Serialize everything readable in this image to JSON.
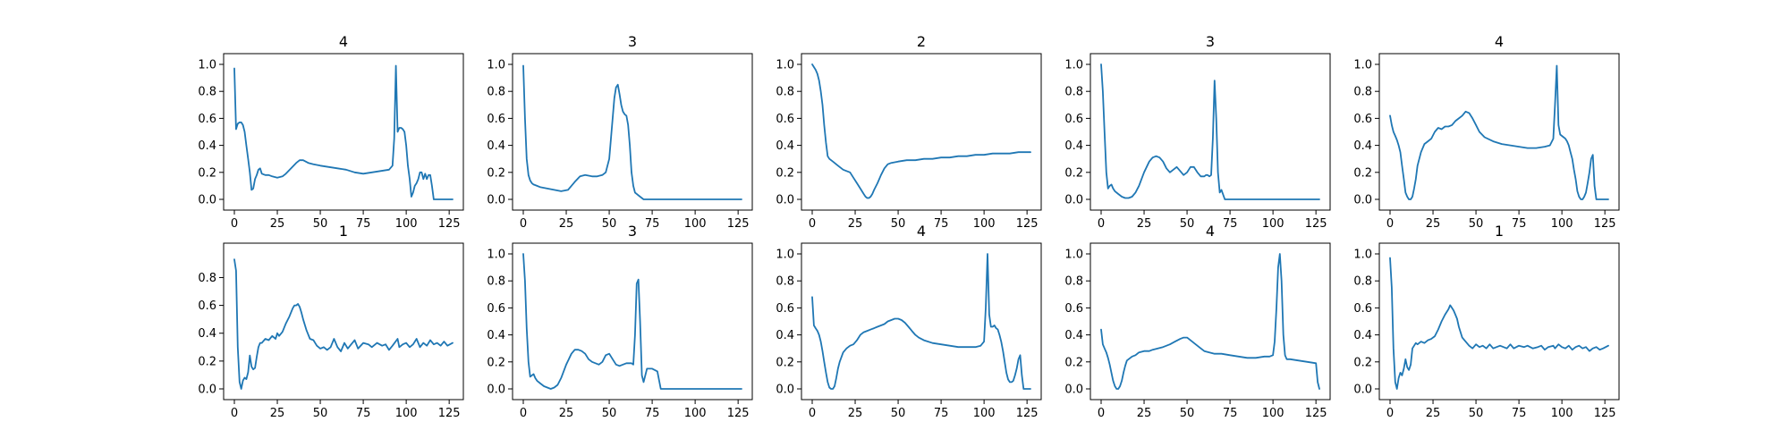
{
  "style": {
    "line_color": "#1f77b4"
  },
  "chart_data": [
    {
      "type": "line",
      "title": "4",
      "xlim": [
        0,
        127
      ],
      "ylim": [
        0,
        1
      ],
      "xticks": [
        0,
        25,
        50,
        75,
        100,
        125
      ],
      "yticks": [
        0.0,
        0.2,
        0.4,
        0.6,
        0.8,
        1.0
      ],
      "x": [
        0,
        1,
        2,
        3,
        4,
        5,
        6,
        7,
        8,
        9,
        10,
        11,
        12,
        13,
        14,
        15,
        16,
        18,
        20,
        22,
        25,
        28,
        30,
        33,
        36,
        38,
        40,
        43,
        46,
        50,
        55,
        60,
        65,
        70,
        75,
        80,
        85,
        90,
        92,
        93,
        94,
        95,
        96,
        97,
        98,
        99,
        100,
        101,
        102,
        103,
        104,
        105,
        106,
        107,
        108,
        109,
        110,
        111,
        112,
        113,
        114,
        115,
        116,
        117,
        118,
        127
      ],
      "y": [
        0.97,
        0.52,
        0.56,
        0.57,
        0.57,
        0.55,
        0.5,
        0.4,
        0.3,
        0.2,
        0.07,
        0.08,
        0.15,
        0.18,
        0.22,
        0.23,
        0.19,
        0.18,
        0.18,
        0.17,
        0.16,
        0.17,
        0.19,
        0.23,
        0.27,
        0.29,
        0.29,
        0.27,
        0.26,
        0.25,
        0.24,
        0.23,
        0.22,
        0.2,
        0.19,
        0.2,
        0.21,
        0.22,
        0.25,
        0.45,
        0.99,
        0.5,
        0.53,
        0.53,
        0.52,
        0.5,
        0.4,
        0.25,
        0.15,
        0.02,
        0.05,
        0.1,
        0.12,
        0.15,
        0.2,
        0.2,
        0.15,
        0.19,
        0.15,
        0.18,
        0.18,
        0.1,
        0.0,
        0.0,
        0.0,
        0.0
      ]
    },
    {
      "type": "line",
      "title": "3",
      "xlim": [
        0,
        127
      ],
      "ylim": [
        0,
        1
      ],
      "xticks": [
        0,
        25,
        50,
        75,
        100,
        125
      ],
      "yticks": [
        0.0,
        0.2,
        0.4,
        0.6,
        0.8,
        1.0
      ],
      "x": [
        0,
        1,
        2,
        3,
        4,
        5,
        6,
        8,
        10,
        14,
        18,
        22,
        26,
        28,
        30,
        33,
        36,
        40,
        43,
        46,
        48,
        50,
        51,
        52,
        53,
        54,
        55,
        56,
        57,
        58,
        59,
        60,
        61,
        62,
        63,
        64,
        65,
        68,
        70,
        72,
        80,
        100,
        127
      ],
      "y": [
        0.99,
        0.6,
        0.3,
        0.18,
        0.14,
        0.12,
        0.11,
        0.1,
        0.09,
        0.08,
        0.07,
        0.06,
        0.07,
        0.1,
        0.13,
        0.17,
        0.18,
        0.17,
        0.17,
        0.18,
        0.2,
        0.3,
        0.45,
        0.6,
        0.75,
        0.83,
        0.85,
        0.78,
        0.7,
        0.65,
        0.63,
        0.62,
        0.55,
        0.4,
        0.2,
        0.1,
        0.05,
        0.02,
        0.0,
        0.0,
        0.0,
        0.0,
        0.0
      ]
    },
    {
      "type": "line",
      "title": "2",
      "xlim": [
        0,
        127
      ],
      "ylim": [
        0,
        1
      ],
      "xticks": [
        0,
        25,
        50,
        75,
        100,
        125
      ],
      "yticks": [
        0.0,
        0.2,
        0.4,
        0.6,
        0.8,
        1.0
      ],
      "x": [
        0,
        1,
        2,
        3,
        4,
        5,
        6,
        7,
        8,
        9,
        10,
        12,
        15,
        18,
        20,
        22,
        24,
        26,
        28,
        30,
        31,
        32,
        33,
        34,
        35,
        36,
        38,
        40,
        42,
        44,
        46,
        50,
        55,
        60,
        65,
        70,
        75,
        80,
        85,
        90,
        95,
        100,
        105,
        110,
        115,
        120,
        127
      ],
      "y": [
        1.0,
        0.98,
        0.96,
        0.93,
        0.88,
        0.8,
        0.7,
        0.55,
        0.42,
        0.32,
        0.3,
        0.28,
        0.25,
        0.22,
        0.21,
        0.2,
        0.16,
        0.12,
        0.08,
        0.04,
        0.02,
        0.01,
        0.01,
        0.02,
        0.04,
        0.07,
        0.12,
        0.18,
        0.23,
        0.26,
        0.27,
        0.28,
        0.29,
        0.29,
        0.3,
        0.3,
        0.31,
        0.31,
        0.32,
        0.32,
        0.33,
        0.33,
        0.34,
        0.34,
        0.34,
        0.35,
        0.35
      ]
    },
    {
      "type": "line",
      "title": "3",
      "xlim": [
        0,
        127
      ],
      "ylim": [
        0,
        1
      ],
      "xticks": [
        0,
        25,
        50,
        75,
        100,
        125
      ],
      "yticks": [
        0.0,
        0.2,
        0.4,
        0.6,
        0.8,
        1.0
      ],
      "x": [
        0,
        1,
        2,
        3,
        4,
        5,
        6,
        7,
        8,
        10,
        12,
        14,
        16,
        18,
        20,
        22,
        25,
        28,
        30,
        32,
        34,
        36,
        38,
        40,
        42,
        44,
        46,
        48,
        50,
        52,
        54,
        56,
        58,
        60,
        61,
        62,
        63,
        64,
        65,
        66,
        67,
        68,
        69,
        70,
        72,
        80,
        100,
        127
      ],
      "y": [
        1.0,
        0.8,
        0.5,
        0.2,
        0.08,
        0.1,
        0.11,
        0.08,
        0.06,
        0.04,
        0.02,
        0.01,
        0.01,
        0.02,
        0.05,
        0.1,
        0.2,
        0.28,
        0.31,
        0.32,
        0.31,
        0.28,
        0.23,
        0.2,
        0.22,
        0.24,
        0.21,
        0.18,
        0.2,
        0.24,
        0.24,
        0.2,
        0.17,
        0.17,
        0.18,
        0.18,
        0.17,
        0.18,
        0.45,
        0.88,
        0.6,
        0.2,
        0.05,
        0.07,
        0.0,
        0.0,
        0.0,
        0.0
      ]
    },
    {
      "type": "line",
      "title": "4",
      "xlim": [
        0,
        127
      ],
      "ylim": [
        0,
        1
      ],
      "xticks": [
        0,
        25,
        50,
        75,
        100,
        125
      ],
      "yticks": [
        0.0,
        0.2,
        0.4,
        0.6,
        0.8,
        1.0
      ],
      "x": [
        0,
        1,
        2,
        3,
        4,
        5,
        6,
        7,
        8,
        9,
        10,
        11,
        12,
        13,
        14,
        15,
        16,
        18,
        20,
        22,
        24,
        26,
        28,
        30,
        32,
        34,
        36,
        38,
        40,
        42,
        44,
        46,
        48,
        50,
        52,
        55,
        60,
        65,
        70,
        75,
        80,
        85,
        90,
        93,
        95,
        96,
        97,
        98,
        99,
        100,
        101,
        102,
        103,
        104,
        105,
        106,
        107,
        108,
        109,
        110,
        111,
        112,
        113,
        114,
        115,
        116,
        117,
        118,
        119,
        120,
        122,
        127
      ],
      "y": [
        0.62,
        0.55,
        0.5,
        0.47,
        0.44,
        0.4,
        0.35,
        0.25,
        0.15,
        0.05,
        0.02,
        0.0,
        0.0,
        0.02,
        0.08,
        0.15,
        0.25,
        0.35,
        0.41,
        0.43,
        0.45,
        0.5,
        0.53,
        0.52,
        0.54,
        0.54,
        0.55,
        0.58,
        0.6,
        0.62,
        0.65,
        0.64,
        0.6,
        0.55,
        0.5,
        0.46,
        0.43,
        0.41,
        0.4,
        0.39,
        0.38,
        0.38,
        0.39,
        0.4,
        0.45,
        0.7,
        0.99,
        0.55,
        0.48,
        0.47,
        0.46,
        0.45,
        0.43,
        0.4,
        0.35,
        0.3,
        0.22,
        0.15,
        0.06,
        0.02,
        0.0,
        0.0,
        0.02,
        0.05,
        0.12,
        0.2,
        0.3,
        0.33,
        0.1,
        0.0,
        0.0,
        0.0
      ]
    },
    {
      "type": "line",
      "title": "1",
      "xlim": [
        0,
        127
      ],
      "ylim": [
        0,
        0.97
      ],
      "xticks": [
        0,
        25,
        50,
        75,
        100,
        125
      ],
      "yticks": [
        0.0,
        0.2,
        0.4,
        0.6,
        0.8
      ],
      "x": [
        0,
        1,
        2,
        3,
        4,
        5,
        6,
        7,
        8,
        9,
        10,
        11,
        12,
        13,
        14,
        15,
        16,
        18,
        20,
        22,
        24,
        25,
        26,
        28,
        30,
        32,
        34,
        35,
        36,
        37,
        38,
        39,
        40,
        42,
        44,
        46,
        48,
        50,
        52,
        54,
        56,
        58,
        60,
        62,
        64,
        66,
        68,
        70,
        72,
        75,
        78,
        80,
        83,
        86,
        88,
        90,
        92,
        95,
        96,
        98,
        100,
        102,
        104,
        106,
        108,
        110,
        112,
        114,
        116,
        118,
        120,
        122,
        124,
        127
      ],
      "y": [
        0.93,
        0.85,
        0.3,
        0.05,
        0.0,
        0.06,
        0.08,
        0.07,
        0.12,
        0.24,
        0.16,
        0.14,
        0.15,
        0.23,
        0.3,
        0.33,
        0.33,
        0.36,
        0.35,
        0.38,
        0.36,
        0.4,
        0.38,
        0.41,
        0.47,
        0.52,
        0.58,
        0.6,
        0.6,
        0.61,
        0.59,
        0.55,
        0.5,
        0.42,
        0.36,
        0.35,
        0.31,
        0.29,
        0.3,
        0.28,
        0.3,
        0.36,
        0.3,
        0.27,
        0.33,
        0.29,
        0.32,
        0.35,
        0.29,
        0.33,
        0.32,
        0.3,
        0.33,
        0.31,
        0.32,
        0.28,
        0.31,
        0.36,
        0.3,
        0.32,
        0.33,
        0.3,
        0.32,
        0.36,
        0.3,
        0.33,
        0.31,
        0.35,
        0.32,
        0.33,
        0.31,
        0.34,
        0.31,
        0.33
      ]
    },
    {
      "type": "line",
      "title": "3",
      "xlim": [
        0,
        127
      ],
      "ylim": [
        0,
        1
      ],
      "xticks": [
        0,
        25,
        50,
        75,
        100,
        125
      ],
      "yticks": [
        0.0,
        0.2,
        0.4,
        0.6,
        0.8,
        1.0
      ],
      "x": [
        0,
        1,
        2,
        3,
        4,
        5,
        6,
        7,
        8,
        10,
        12,
        14,
        16,
        18,
        20,
        22,
        25,
        28,
        30,
        32,
        34,
        36,
        38,
        40,
        42,
        44,
        46,
        48,
        50,
        52,
        54,
        56,
        58,
        60,
        62,
        63,
        64,
        65,
        66,
        67,
        68,
        69,
        70,
        72,
        75,
        78,
        80,
        90,
        100,
        127
      ],
      "y": [
        1.0,
        0.8,
        0.45,
        0.2,
        0.09,
        0.1,
        0.11,
        0.08,
        0.06,
        0.04,
        0.02,
        0.01,
        0.0,
        0.01,
        0.03,
        0.08,
        0.18,
        0.26,
        0.29,
        0.29,
        0.28,
        0.26,
        0.22,
        0.2,
        0.19,
        0.18,
        0.2,
        0.25,
        0.26,
        0.22,
        0.18,
        0.17,
        0.18,
        0.19,
        0.19,
        0.19,
        0.18,
        0.4,
        0.78,
        0.81,
        0.5,
        0.1,
        0.05,
        0.15,
        0.15,
        0.13,
        0.0,
        0.0,
        0.0,
        0.0
      ]
    },
    {
      "type": "line",
      "title": "4",
      "xlim": [
        0,
        127
      ],
      "ylim": [
        0,
        1
      ],
      "xticks": [
        0,
        25,
        50,
        75,
        100,
        125
      ],
      "yticks": [
        0.0,
        0.2,
        0.4,
        0.6,
        0.8,
        1.0
      ],
      "x": [
        0,
        1,
        2,
        3,
        4,
        5,
        6,
        7,
        8,
        9,
        10,
        11,
        12,
        13,
        14,
        15,
        16,
        18,
        20,
        22,
        24,
        26,
        28,
        30,
        32,
        34,
        36,
        38,
        40,
        42,
        44,
        46,
        48,
        50,
        52,
        54,
        56,
        58,
        60,
        62,
        65,
        70,
        75,
        80,
        85,
        90,
        95,
        98,
        100,
        101,
        102,
        103,
        104,
        105,
        106,
        107,
        108,
        109,
        110,
        111,
        112,
        113,
        114,
        115,
        116,
        117,
        118,
        119,
        120,
        121,
        122,
        123,
        124,
        127
      ],
      "y": [
        0.68,
        0.47,
        0.45,
        0.43,
        0.4,
        0.35,
        0.28,
        0.2,
        0.12,
        0.05,
        0.01,
        0.0,
        0.0,
        0.02,
        0.08,
        0.15,
        0.2,
        0.27,
        0.3,
        0.32,
        0.33,
        0.36,
        0.4,
        0.42,
        0.43,
        0.44,
        0.45,
        0.46,
        0.47,
        0.48,
        0.5,
        0.51,
        0.52,
        0.52,
        0.51,
        0.49,
        0.46,
        0.43,
        0.4,
        0.38,
        0.36,
        0.34,
        0.33,
        0.32,
        0.31,
        0.31,
        0.31,
        0.32,
        0.35,
        0.6,
        1.0,
        0.55,
        0.46,
        0.46,
        0.47,
        0.45,
        0.44,
        0.4,
        0.35,
        0.28,
        0.2,
        0.12,
        0.07,
        0.05,
        0.05,
        0.06,
        0.1,
        0.15,
        0.22,
        0.25,
        0.1,
        0.0,
        0.0,
        0.0
      ]
    },
    {
      "type": "line",
      "title": "4",
      "xlim": [
        0,
        127
      ],
      "ylim": [
        0,
        1
      ],
      "xticks": [
        0,
        25,
        50,
        75,
        100,
        125
      ],
      "yticks": [
        0.0,
        0.2,
        0.4,
        0.6,
        0.8,
        1.0
      ],
      "x": [
        0,
        1,
        2,
        3,
        4,
        5,
        6,
        7,
        8,
        9,
        10,
        11,
        12,
        13,
        14,
        15,
        16,
        18,
        20,
        22,
        25,
        28,
        30,
        33,
        36,
        40,
        43,
        46,
        48,
        50,
        52,
        55,
        58,
        60,
        63,
        66,
        70,
        75,
        80,
        85,
        90,
        95,
        98,
        100,
        101,
        102,
        103,
        104,
        105,
        106,
        107,
        108,
        110,
        115,
        120,
        125,
        126,
        127
      ],
      "y": [
        0.44,
        0.33,
        0.3,
        0.27,
        0.23,
        0.18,
        0.12,
        0.06,
        0.02,
        0.0,
        0.0,
        0.02,
        0.06,
        0.12,
        0.17,
        0.21,
        0.22,
        0.24,
        0.25,
        0.27,
        0.28,
        0.28,
        0.29,
        0.3,
        0.31,
        0.33,
        0.35,
        0.37,
        0.38,
        0.38,
        0.36,
        0.33,
        0.3,
        0.28,
        0.27,
        0.26,
        0.26,
        0.25,
        0.24,
        0.23,
        0.23,
        0.24,
        0.24,
        0.25,
        0.35,
        0.6,
        0.9,
        1.0,
        0.8,
        0.4,
        0.25,
        0.22,
        0.22,
        0.21,
        0.2,
        0.19,
        0.05,
        0.0
      ]
    },
    {
      "type": "line",
      "title": "1",
      "xlim": [
        0,
        127
      ],
      "ylim": [
        0,
        1
      ],
      "xticks": [
        0,
        25,
        50,
        75,
        100,
        125
      ],
      "yticks": [
        0.0,
        0.2,
        0.4,
        0.6,
        0.8,
        1.0
      ],
      "x": [
        0,
        1,
        2,
        3,
        4,
        5,
        6,
        7,
        8,
        9,
        10,
        11,
        12,
        13,
        14,
        15,
        16,
        18,
        20,
        22,
        24,
        25,
        26,
        28,
        30,
        32,
        34,
        35,
        36,
        37,
        38,
        39,
        40,
        42,
        44,
        46,
        48,
        50,
        52,
        54,
        56,
        58,
        60,
        62,
        64,
        66,
        68,
        70,
        72,
        75,
        78,
        80,
        83,
        86,
        88,
        90,
        92,
        95,
        96,
        98,
        100,
        102,
        104,
        106,
        108,
        110,
        112,
        114,
        116,
        118,
        120,
        122,
        124,
        127
      ],
      "y": [
        0.97,
        0.75,
        0.3,
        0.05,
        0.0,
        0.08,
        0.12,
        0.1,
        0.15,
        0.22,
        0.16,
        0.14,
        0.18,
        0.3,
        0.32,
        0.34,
        0.33,
        0.35,
        0.34,
        0.36,
        0.37,
        0.38,
        0.39,
        0.44,
        0.5,
        0.55,
        0.59,
        0.62,
        0.6,
        0.58,
        0.55,
        0.52,
        0.46,
        0.38,
        0.35,
        0.32,
        0.3,
        0.33,
        0.31,
        0.32,
        0.3,
        0.33,
        0.3,
        0.31,
        0.32,
        0.31,
        0.3,
        0.33,
        0.3,
        0.32,
        0.31,
        0.32,
        0.3,
        0.31,
        0.32,
        0.29,
        0.31,
        0.32,
        0.3,
        0.33,
        0.31,
        0.3,
        0.32,
        0.29,
        0.31,
        0.32,
        0.3,
        0.31,
        0.28,
        0.3,
        0.31,
        0.29,
        0.3,
        0.32
      ]
    }
  ]
}
